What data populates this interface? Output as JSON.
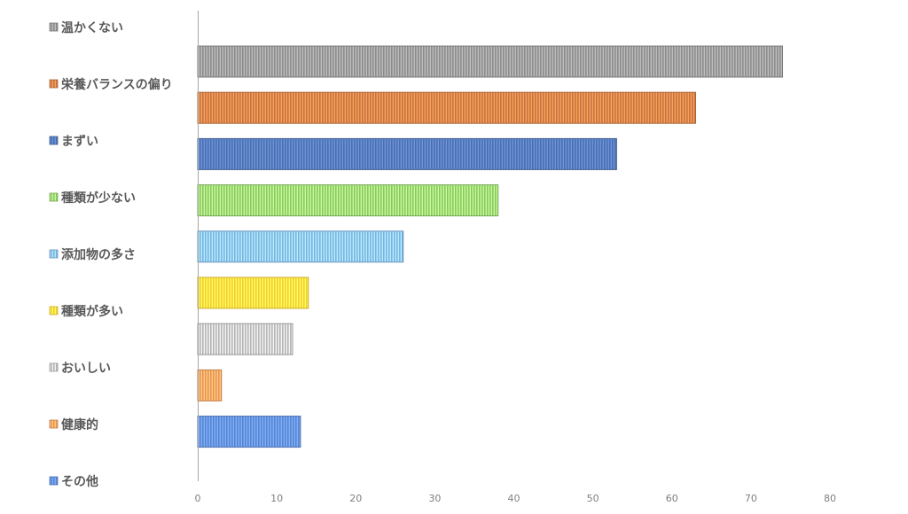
{
  "chart_data": {
    "type": "bar",
    "orientation": "horizontal",
    "xlim": [
      0,
      80
    ],
    "x_ticks": [
      "0",
      "10",
      "20",
      "30",
      "40",
      "50",
      "60",
      "70",
      "80"
    ],
    "grid": false,
    "legend_position": "left",
    "series": [
      {
        "name": "温かくない",
        "value": 74,
        "color": "#8c8c8c"
      },
      {
        "name": "栄養バランスの偏り",
        "value": 63,
        "color": "#c27642"
      },
      {
        "name": "まずい",
        "value": 53,
        "color": "#4e6ea8"
      },
      {
        "name": "種類が少ない",
        "value": 38,
        "color": "#8fc46a"
      },
      {
        "name": "添加物の多さ",
        "value": 26,
        "color": "#80b1e0"
      },
      {
        "name": "種類が多い",
        "value": 14,
        "color": "#f2cc3c"
      },
      {
        "name": "おいしい",
        "value": 12,
        "color": "#b5b5b5"
      },
      {
        "name": "健康的",
        "value": 3,
        "color": "#e8955a"
      },
      {
        "name": "その他",
        "value": 13,
        "color": "#5b83cc"
      }
    ]
  }
}
